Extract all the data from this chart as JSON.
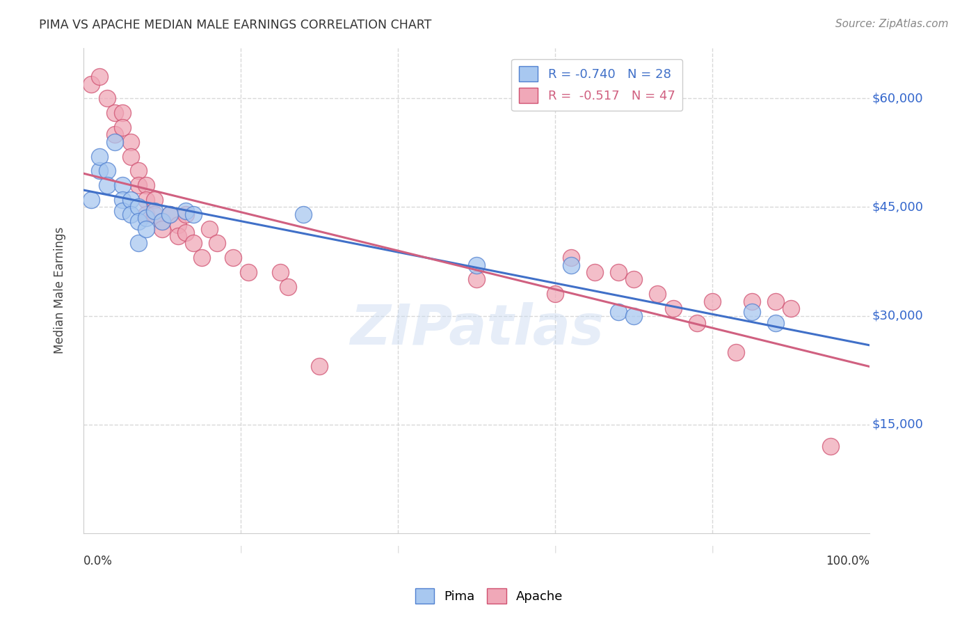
{
  "title": "PIMA VS APACHE MEDIAN MALE EARNINGS CORRELATION CHART",
  "source": "Source: ZipAtlas.com",
  "ylabel": "Median Male Earnings",
  "watermark": "ZIPatlas",
  "y_ticks": [
    15000,
    30000,
    45000,
    60000
  ],
  "y_tick_labels": [
    "$15,000",
    "$30,000",
    "$45,000",
    "$60,000"
  ],
  "xlim": [
    0.0,
    1.0
  ],
  "ylim": [
    0,
    67000
  ],
  "pima_color": "#a8c8f0",
  "apache_color": "#f0a8b8",
  "pima_edge_color": "#5080d0",
  "apache_edge_color": "#d05070",
  "pima_line_color": "#4070c8",
  "apache_line_color": "#d06080",
  "background_color": "#ffffff",
  "grid_color": "#d8d8d8",
  "axis_color": "#cccccc",
  "title_color": "#333333",
  "ylabel_color": "#444444",
  "right_label_color": "#3366cc",
  "source_color": "#888888",
  "legend_pima_text": "R = -0.740   N = 28",
  "legend_apache_text": "R =  -0.517   N = 47",
  "pima_points": [
    [
      0.01,
      46000
    ],
    [
      0.02,
      50000
    ],
    [
      0.02,
      52000
    ],
    [
      0.03,
      50000
    ],
    [
      0.03,
      48000
    ],
    [
      0.04,
      54000
    ],
    [
      0.05,
      48000
    ],
    [
      0.05,
      46000
    ],
    [
      0.05,
      44500
    ],
    [
      0.06,
      46000
    ],
    [
      0.06,
      44000
    ],
    [
      0.07,
      45000
    ],
    [
      0.07,
      43000
    ],
    [
      0.07,
      40000
    ],
    [
      0.08,
      43500
    ],
    [
      0.08,
      42000
    ],
    [
      0.09,
      44500
    ],
    [
      0.1,
      43000
    ],
    [
      0.11,
      44000
    ],
    [
      0.13,
      44500
    ],
    [
      0.14,
      44000
    ],
    [
      0.28,
      44000
    ],
    [
      0.5,
      37000
    ],
    [
      0.62,
      37000
    ],
    [
      0.68,
      30500
    ],
    [
      0.7,
      30000
    ],
    [
      0.85,
      30500
    ],
    [
      0.88,
      29000
    ]
  ],
  "apache_points": [
    [
      0.01,
      62000
    ],
    [
      0.02,
      63000
    ],
    [
      0.03,
      60000
    ],
    [
      0.04,
      58000
    ],
    [
      0.04,
      55000
    ],
    [
      0.05,
      58000
    ],
    [
      0.05,
      56000
    ],
    [
      0.06,
      54000
    ],
    [
      0.06,
      52000
    ],
    [
      0.07,
      50000
    ],
    [
      0.07,
      48000
    ],
    [
      0.08,
      48000
    ],
    [
      0.08,
      46000
    ],
    [
      0.08,
      44000
    ],
    [
      0.09,
      46000
    ],
    [
      0.09,
      44000
    ],
    [
      0.1,
      43000
    ],
    [
      0.1,
      42000
    ],
    [
      0.11,
      44000
    ],
    [
      0.12,
      42500
    ],
    [
      0.12,
      41000
    ],
    [
      0.13,
      44000
    ],
    [
      0.13,
      41500
    ],
    [
      0.14,
      40000
    ],
    [
      0.15,
      38000
    ],
    [
      0.16,
      42000
    ],
    [
      0.17,
      40000
    ],
    [
      0.19,
      38000
    ],
    [
      0.21,
      36000
    ],
    [
      0.25,
      36000
    ],
    [
      0.26,
      34000
    ],
    [
      0.3,
      23000
    ],
    [
      0.5,
      35000
    ],
    [
      0.6,
      33000
    ],
    [
      0.62,
      38000
    ],
    [
      0.65,
      36000
    ],
    [
      0.68,
      36000
    ],
    [
      0.7,
      35000
    ],
    [
      0.73,
      33000
    ],
    [
      0.75,
      31000
    ],
    [
      0.78,
      29000
    ],
    [
      0.8,
      32000
    ],
    [
      0.83,
      25000
    ],
    [
      0.85,
      32000
    ],
    [
      0.88,
      32000
    ],
    [
      0.9,
      31000
    ],
    [
      0.95,
      12000
    ]
  ]
}
